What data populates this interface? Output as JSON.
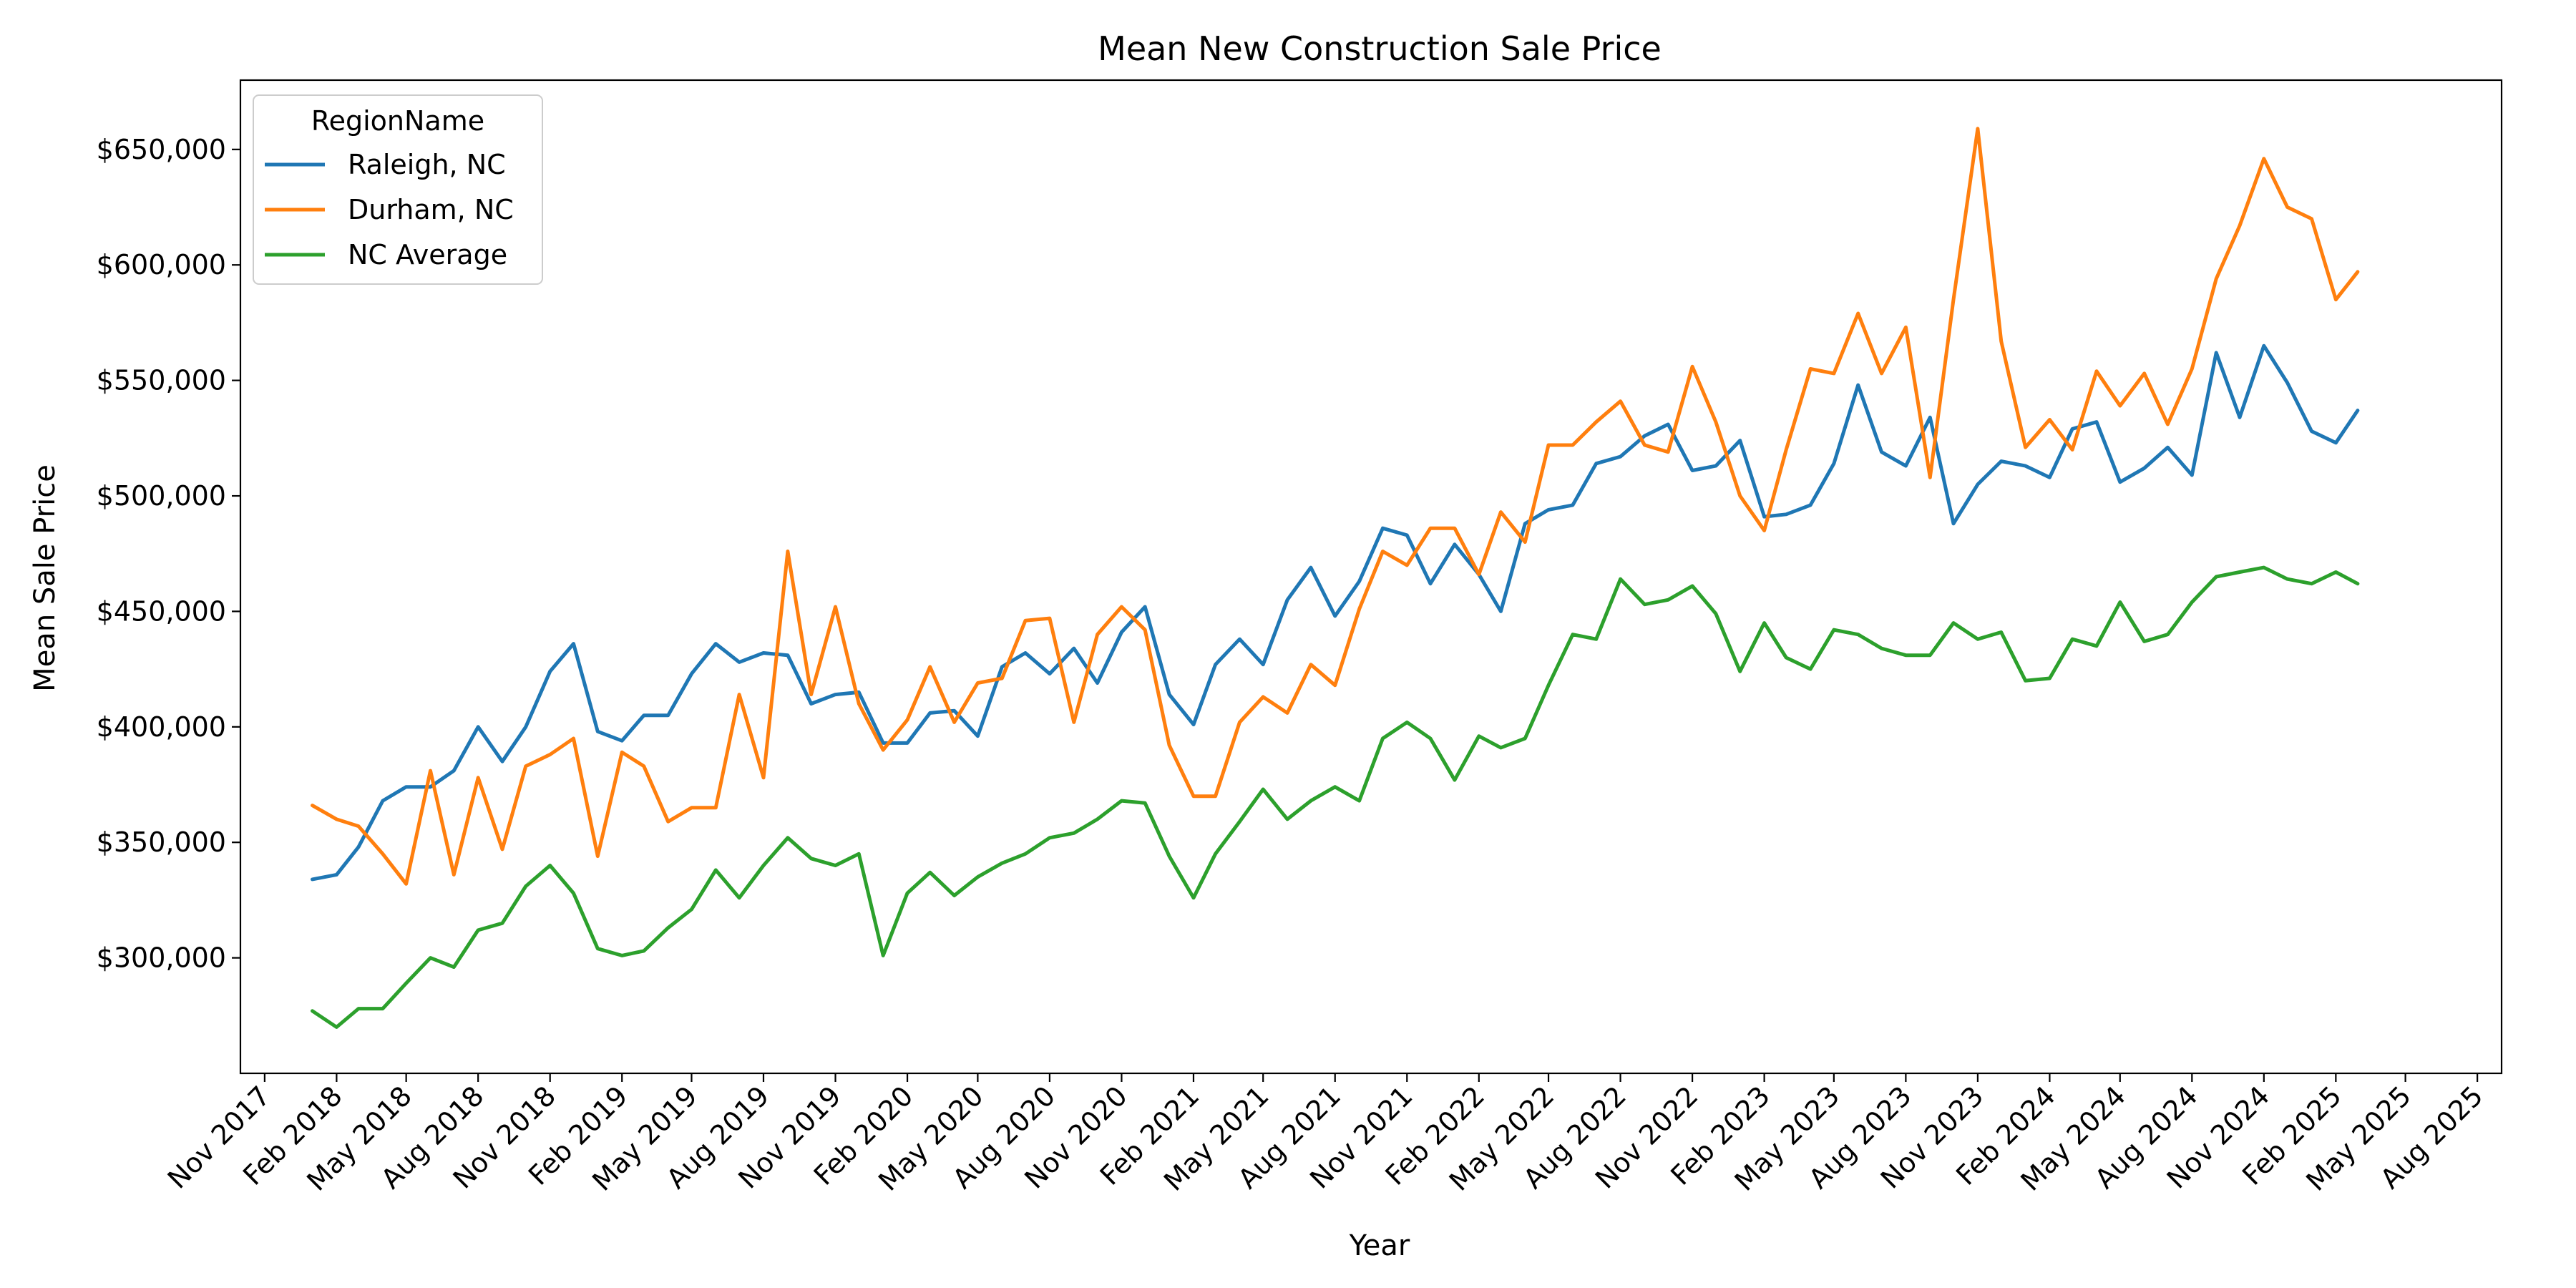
{
  "chart_data": {
    "type": "line",
    "title": "Mean New Construction Sale Price",
    "xlabel": "Year",
    "ylabel": "Mean Sale Price",
    "ylim": [
      250000,
      680000
    ],
    "xlim": [
      "2017-10-01",
      "2025-09-01"
    ],
    "grid": false,
    "legend": {
      "title": "RegionName",
      "placement": "top-left"
    },
    "x_ticks": [
      "Nov 2017",
      "Feb 2018",
      "May 2018",
      "Aug 2018",
      "Nov 2018",
      "Feb 2019",
      "May 2019",
      "Aug 2019",
      "Nov 2019",
      "Feb 2020",
      "May 2020",
      "Aug 2020",
      "Nov 2020",
      "Feb 2021",
      "May 2021",
      "Aug 2021",
      "Nov 2021",
      "Feb 2022",
      "May 2022",
      "Aug 2022",
      "Nov 2022",
      "Feb 2023",
      "May 2023",
      "Aug 2023",
      "Nov 2023",
      "Feb 2024",
      "May 2024",
      "Aug 2024",
      "Nov 2024",
      "Feb 2025",
      "May 2025",
      "Aug 2025"
    ],
    "x_tick_dates": [
      "2017-11-01",
      "2018-02-01",
      "2018-05-01",
      "2018-08-01",
      "2018-11-01",
      "2019-02-01",
      "2019-05-01",
      "2019-08-01",
      "2019-11-01",
      "2020-02-01",
      "2020-05-01",
      "2020-08-01",
      "2020-11-01",
      "2021-02-01",
      "2021-05-01",
      "2021-08-01",
      "2021-11-01",
      "2022-02-01",
      "2022-05-01",
      "2022-08-01",
      "2022-11-01",
      "2023-02-01",
      "2023-05-01",
      "2023-08-01",
      "2023-11-01",
      "2024-02-01",
      "2024-05-01",
      "2024-08-01",
      "2024-11-01",
      "2025-02-01",
      "2025-05-01",
      "2025-08-01"
    ],
    "y_ticks": [
      300000,
      350000,
      400000,
      450000,
      500000,
      550000,
      600000,
      650000
    ],
    "y_tick_labels": [
      "$300,000",
      "$350,000",
      "$400,000",
      "$450,000",
      "$500,000",
      "$550,000",
      "$600,000",
      "$650,000"
    ],
    "x_start": "2018-01",
    "x_end": "2025-03",
    "series": [
      {
        "name": "Raleigh, NC",
        "color": "#1f77b4",
        "values": [
          334000,
          336000,
          348000,
          368000,
          374000,
          374000,
          381000,
          400000,
          385000,
          400000,
          424000,
          436000,
          398000,
          394000,
          405000,
          405000,
          423000,
          436000,
          428000,
          432000,
          431000,
          410000,
          414000,
          415000,
          393000,
          393000,
          406000,
          407000,
          396000,
          426000,
          432000,
          423000,
          434000,
          419000,
          441000,
          452000,
          414000,
          401000,
          427000,
          438000,
          427000,
          455000,
          469000,
          448000,
          463000,
          486000,
          483000,
          462000,
          479000,
          466000,
          450000,
          488000,
          494000,
          496000,
          514000,
          517000,
          526000,
          531000,
          511000,
          513000,
          524000,
          491000,
          492000,
          496000,
          514000,
          548000,
          519000,
          513000,
          534000,
          488000,
          505000,
          515000,
          513000,
          508000,
          529000,
          532000,
          506000,
          512000,
          521000,
          509000,
          562000,
          534000,
          565000,
          549000,
          528000,
          523000,
          537000
        ]
      },
      {
        "name": "Durham, NC",
        "color": "#ff7f0e",
        "values": [
          366000,
          360000,
          357000,
          345000,
          332000,
          381000,
          336000,
          378000,
          347000,
          383000,
          388000,
          395000,
          344000,
          389000,
          383000,
          359000,
          365000,
          365000,
          414000,
          378000,
          476000,
          414000,
          452000,
          410000,
          390000,
          403000,
          426000,
          402000,
          419000,
          421000,
          446000,
          447000,
          402000,
          440000,
          452000,
          442000,
          392000,
          370000,
          370000,
          402000,
          413000,
          406000,
          427000,
          418000,
          451000,
          476000,
          470000,
          486000,
          486000,
          466000,
          493000,
          480000,
          522000,
          522000,
          532000,
          541000,
          522000,
          519000,
          556000,
          532000,
          500000,
          485000,
          520000,
          555000,
          553000,
          579000,
          553000,
          573000,
          508000,
          585000,
          659000,
          567000,
          521000,
          533000,
          520000,
          554000,
          539000,
          553000,
          531000,
          555000,
          594000,
          617000,
          646000,
          625000,
          620000,
          585000,
          597000
        ]
      },
      {
        "name": "NC Average",
        "color": "#2ca02c",
        "values": [
          277000,
          270000,
          278000,
          278000,
          289000,
          300000,
          296000,
          312000,
          315000,
          331000,
          340000,
          328000,
          304000,
          301000,
          303000,
          313000,
          321000,
          338000,
          326000,
          340000,
          352000,
          343000,
          340000,
          345000,
          301000,
          328000,
          337000,
          327000,
          335000,
          341000,
          345000,
          352000,
          354000,
          360000,
          368000,
          367000,
          344000,
          326000,
          345000,
          359000,
          373000,
          360000,
          368000,
          374000,
          368000,
          395000,
          402000,
          395000,
          377000,
          396000,
          391000,
          395000,
          418000,
          440000,
          438000,
          464000,
          453000,
          455000,
          461000,
          449000,
          424000,
          445000,
          430000,
          425000,
          442000,
          440000,
          434000,
          431000,
          431000,
          445000,
          438000,
          441000,
          420000,
          421000,
          438000,
          435000,
          454000,
          437000,
          440000,
          454000,
          465000,
          467000,
          469000,
          464000,
          462000,
          467000,
          462000
        ]
      }
    ]
  }
}
